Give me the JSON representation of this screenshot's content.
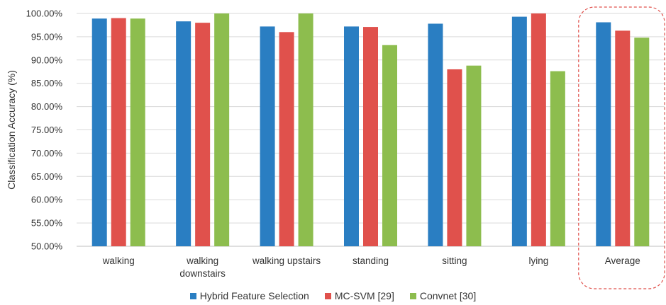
{
  "chart_data": {
    "type": "bar",
    "ylabel": "Classification Accuracy (%)",
    "ylim": [
      50,
      100
    ],
    "yticks": [
      "50.00%",
      "55.00%",
      "60.00%",
      "65.00%",
      "70.00%",
      "75.00%",
      "80.00%",
      "85.00%",
      "90.00%",
      "95.00%",
      "100.00%"
    ],
    "categories": [
      [
        "walking"
      ],
      [
        "walking",
        "downstairs"
      ],
      [
        "walking upstairs"
      ],
      [
        "standing"
      ],
      [
        "sitting"
      ],
      [
        "lying"
      ],
      [
        "Average"
      ]
    ],
    "series": [
      {
        "name": "Hybrid Feature Selection",
        "color": "#2a7ec2",
        "values": [
          98.9,
          98.3,
          97.2,
          97.2,
          97.8,
          99.3,
          98.1
        ]
      },
      {
        "name": "MC-SVM [29]",
        "color": "#e0514c",
        "values": [
          99.0,
          98.0,
          96.0,
          97.1,
          88.0,
          100.0,
          96.3
        ]
      },
      {
        "name": "Convnet [30]",
        "color": "#8dbd4e",
        "values": [
          98.9,
          100.0,
          100.0,
          93.2,
          88.8,
          87.6,
          94.8
        ]
      }
    ],
    "highlight": {
      "category": "Average",
      "style": "dashed rounded box",
      "color": "#e0514c"
    },
    "grid": true,
    "legend_position": "bottom"
  }
}
